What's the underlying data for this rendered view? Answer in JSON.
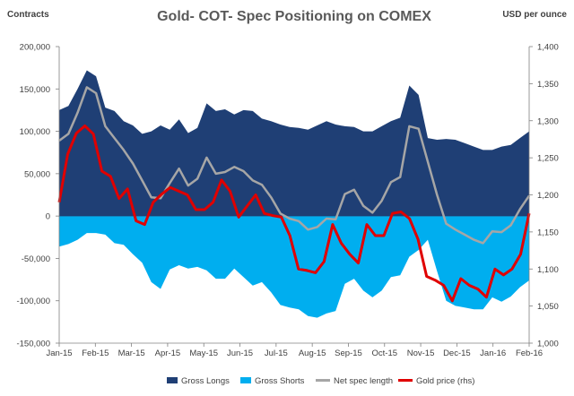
{
  "chart_data": {
    "type": "area",
    "title": "Gold- COT- Spec Positioning on COMEX",
    "left_axis_label": "Contracts",
    "right_axis_label": "USD per ounce",
    "x_tick_labels": [
      "Jan-15",
      "Feb-15",
      "Mar-15",
      "Apr-15",
      "May-15",
      "Jun-15",
      "Jul-15",
      "Aug-15",
      "Sep-15",
      "Oct-15",
      "Nov-15",
      "Dec-15",
      "Jan-16",
      "Feb-16"
    ],
    "y_left": {
      "min": -150000,
      "max": 200000,
      "step": 50000,
      "tick_labels": [
        "-150,000",
        "-100,000",
        "-50,000",
        "0",
        "50,000",
        "100,000",
        "150,000",
        "200,000"
      ]
    },
    "y_right": {
      "min": 1000,
      "max": 1400,
      "step": 50,
      "tick_labels": [
        "1,000",
        "1,050",
        "1,100",
        "1,150",
        "1,200",
        "1,250",
        "1,300",
        "1,350",
        "1,400"
      ]
    },
    "grid": false,
    "legend_position": "bottom",
    "colors": {
      "gross_longs": "#1f3f75",
      "gross_shorts": "#00aeef",
      "net_spec": "#a6a6a6",
      "gold_price": "#e00000"
    },
    "series": [
      {
        "name": "Gross Longs",
        "kind": "area",
        "axis": "left",
        "values": [
          125000,
          130000,
          150000,
          172000,
          165000,
          128000,
          124000,
          112000,
          107000,
          97000,
          100000,
          107000,
          102000,
          114000,
          98000,
          104000,
          133000,
          124000,
          126000,
          120000,
          125000,
          124000,
          115000,
          112000,
          108000,
          105000,
          104000,
          102000,
          107000,
          112000,
          108000,
          106000,
          105000,
          100000,
          100000,
          106000,
          112000,
          116000,
          154000,
          143000,
          92000,
          90000,
          91000,
          90000,
          86000,
          82000,
          78000,
          78000,
          82000,
          84000,
          92000,
          100000
        ]
      },
      {
        "name": "Gross Shorts",
        "kind": "area",
        "axis": "left",
        "values": [
          -36000,
          -33000,
          -28000,
          -20000,
          -20000,
          -22000,
          -32000,
          -34000,
          -45000,
          -55000,
          -78000,
          -86000,
          -63000,
          -58000,
          -62000,
          -60000,
          -64000,
          -74000,
          -74000,
          -62000,
          -72000,
          -82000,
          -78000,
          -90000,
          -105000,
          -108000,
          -110000,
          -118000,
          -120000,
          -115000,
          -112000,
          -80000,
          -74000,
          -88000,
          -96000,
          -88000,
          -72000,
          -70000,
          -48000,
          -40000,
          -28000,
          -65000,
          -100000,
          -106000,
          -108000,
          -110000,
          -110000,
          -96000,
          -101000,
          -95000,
          -84000,
          -76000
        ]
      },
      {
        "name": "Net spec length",
        "kind": "line",
        "axis": "left",
        "values": [
          89000,
          97000,
          122000,
          152000,
          145000,
          106000,
          92000,
          78000,
          62000,
          42000,
          22000,
          21000,
          39000,
          56000,
          36000,
          44000,
          69000,
          50000,
          52000,
          58000,
          53000,
          42000,
          37000,
          22000,
          3000,
          -3000,
          -6000,
          -16000,
          -13000,
          -3000,
          -4000,
          26000,
          31000,
          12000,
          4000,
          18000,
          40000,
          46000,
          106000,
          103000,
          64000,
          25000,
          -9000,
          -16000,
          -22000,
          -28000,
          -32000,
          -18000,
          -19000,
          -11000,
          8000,
          24000
        ]
      },
      {
        "name": "Gold price (rhs)",
        "kind": "line",
        "axis": "right",
        "values": [
          1190,
          1255,
          1283,
          1293,
          1282,
          1232,
          1225,
          1195,
          1208,
          1165,
          1160,
          1190,
          1201,
          1210,
          1205,
          1200,
          1180,
          1180,
          1190,
          1220,
          1205,
          1170,
          1185,
          1200,
          1175,
          1172,
          1170,
          1145,
          1100,
          1098,
          1095,
          1110,
          1160,
          1135,
          1120,
          1108,
          1160,
          1145,
          1145,
          1175,
          1177,
          1168,
          1140,
          1090,
          1085,
          1078,
          1057,
          1087,
          1078,
          1073,
          1062,
          1100,
          1092,
          1100,
          1120,
          1175
        ]
      }
    ]
  }
}
